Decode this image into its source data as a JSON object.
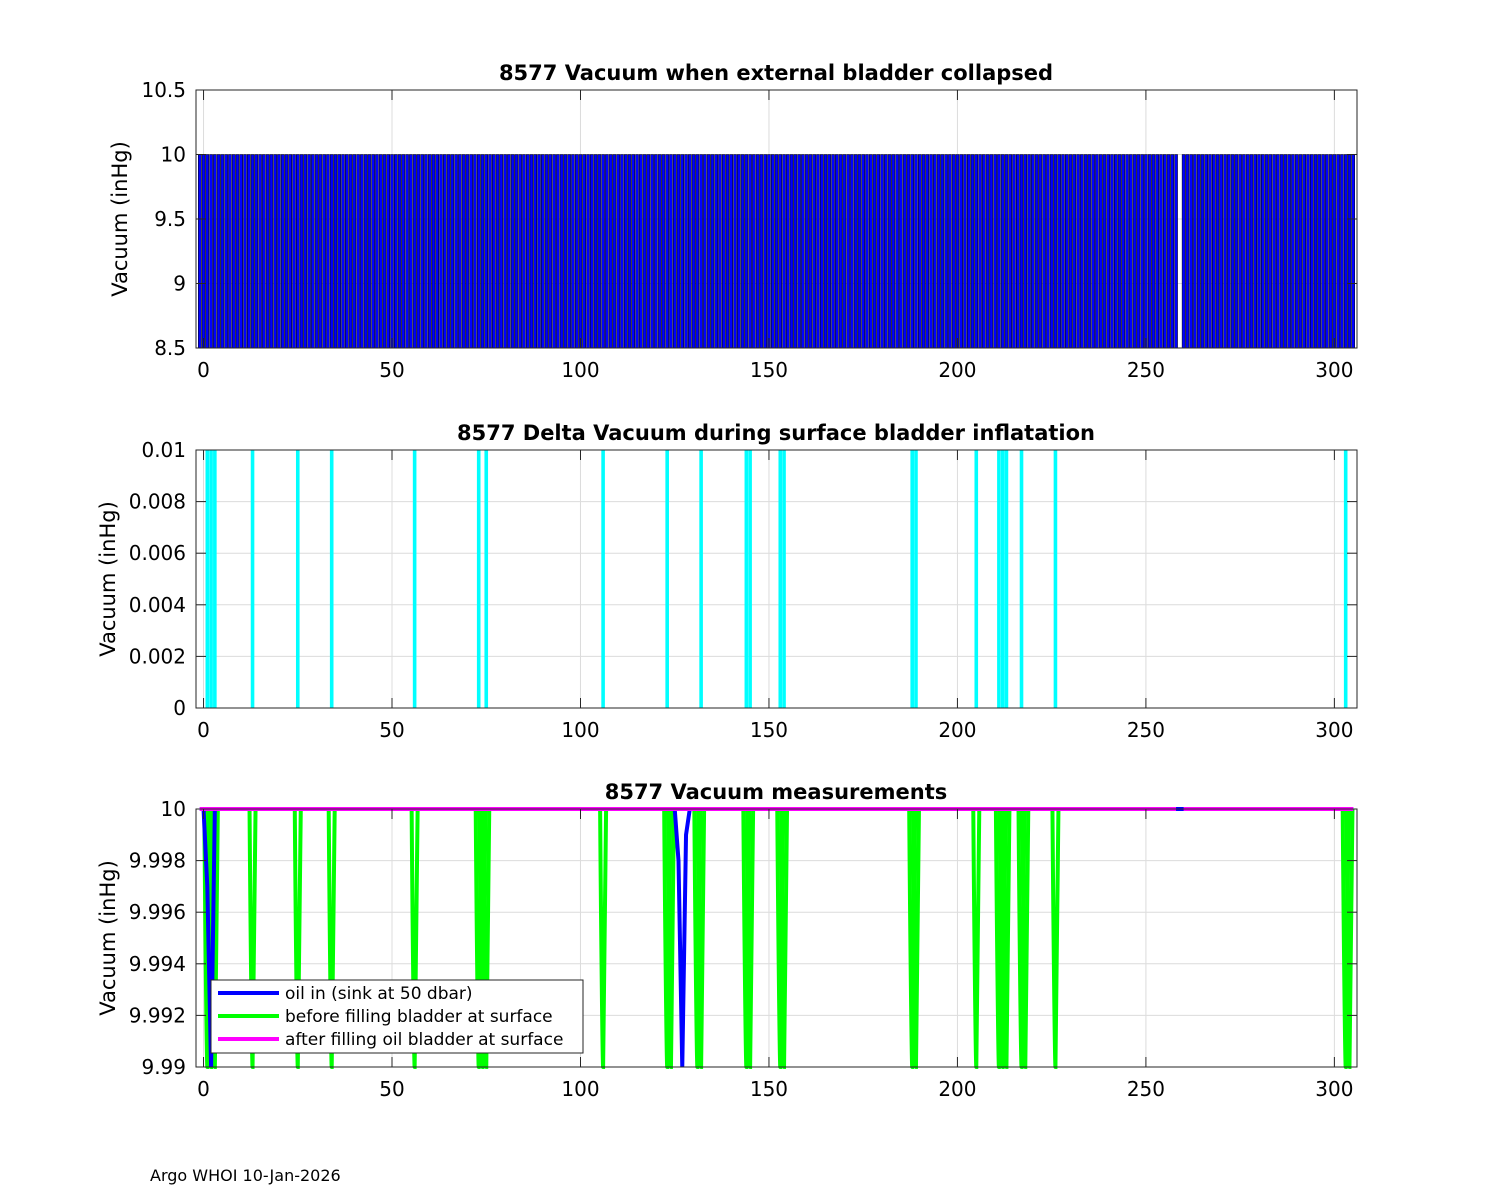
{
  "footer": "Argo WHOI 10-Jan-2026",
  "colors": {
    "blue": "#0000ff",
    "cyan": "#00ffff",
    "green": "#00ff00",
    "magenta": "#ff00ff",
    "grid": "#dcdcdc"
  },
  "chart_data": [
    {
      "type": "bar",
      "title": "8577 Vacuum when external bladder collapsed",
      "xlabel": "",
      "ylabel": "Vacuum (inHg)",
      "xlim": [
        -2,
        306
      ],
      "ylim": [
        8.5,
        10.5
      ],
      "xticks": [
        0,
        50,
        100,
        150,
        200,
        250,
        300
      ],
      "yticks": [
        8.5,
        9,
        9.5,
        10,
        10.5
      ],
      "ytick_labels": [
        "8.5",
        "9",
        "9.5",
        "10",
        "10.5"
      ],
      "series": [
        {
          "name": "Vacuum",
          "color": "#0000ff",
          "profiles_range": [
            -1,
            305
          ],
          "value": 10,
          "missing": [
            259
          ]
        }
      ],
      "grid": true
    },
    {
      "type": "bar",
      "title": "8577 Delta Vacuum during surface bladder inflatation",
      "xlabel": "",
      "ylabel": "Vacuum (inHg)",
      "xlim": [
        -2,
        306
      ],
      "ylim": [
        0,
        0.01
      ],
      "xticks": [
        0,
        50,
        100,
        150,
        200,
        250,
        300
      ],
      "yticks": [
        0,
        0.002,
        0.004,
        0.006,
        0.008,
        0.01
      ],
      "ytick_labels": [
        "0",
        "0.002",
        "0.004",
        "0.006",
        "0.008",
        "0.01"
      ],
      "series": [
        {
          "name": "Delta vacuum",
          "color": "#00ffff",
          "x": [
            1,
            2,
            3,
            13,
            25,
            34,
            56,
            73,
            75,
            106,
            123,
            132,
            144,
            145,
            153,
            154,
            188,
            189,
            205,
            211,
            212,
            213,
            217,
            226,
            303
          ],
          "values": [
            0.01,
            0.01,
            0.01,
            0.01,
            0.01,
            0.01,
            0.01,
            0.01,
            0.01,
            0.01,
            0.01,
            0.01,
            0.01,
            0.01,
            0.01,
            0.01,
            0.01,
            0.01,
            0.01,
            0.01,
            0.01,
            0.01,
            0.01,
            0.01,
            0.01
          ]
        }
      ],
      "grid": true
    },
    {
      "type": "line",
      "title": "8577 Vacuum measurements",
      "xlabel": "",
      "ylabel": "Vacuum (inHg)",
      "xlim": [
        -2,
        306
      ],
      "ylim": [
        9.99,
        10
      ],
      "xticks": [
        0,
        50,
        100,
        150,
        200,
        250,
        300
      ],
      "yticks": [
        9.99,
        9.992,
        9.994,
        9.996,
        9.998,
        10
      ],
      "ytick_labels": [
        "9.99",
        "9.992",
        "9.994",
        "9.996",
        "9.998",
        "10"
      ],
      "legend": {
        "placement": "bottom-left",
        "entries": [
          "oil in (sink at 50 dbar)",
          "before filling bladder at surface",
          "after filling oil bladder at surface"
        ]
      },
      "series": [
        {
          "name": "oil in (sink at 50 dbar)",
          "color": "#0000ff",
          "x": [
            -1,
            0,
            1,
            2,
            3,
            4,
            125,
            126,
            127,
            128,
            129,
            305
          ],
          "values": [
            10,
            10,
            9.997,
            9.99,
            10,
            10,
            10,
            9.998,
            9.99,
            9.999,
            10,
            10
          ]
        },
        {
          "name": "before filling bladder at surface",
          "color": "#00ff00",
          "dips_x": [
            1,
            2,
            3,
            13,
            25,
            34,
            56,
            73,
            74,
            75,
            106,
            123,
            124,
            131,
            132,
            144,
            145,
            153,
            154,
            188,
            189,
            205,
            211,
            212,
            213,
            217,
            218,
            226,
            303,
            304
          ],
          "dip_value": 9.99,
          "baseline": 10
        },
        {
          "name": "after filling oil bladder at surface",
          "color": "#ff00ff",
          "x": [
            -1,
            258,
            260,
            305
          ],
          "values": [
            10,
            10,
            10,
            10
          ],
          "gap_after_x": 258
        }
      ],
      "grid": true
    }
  ]
}
